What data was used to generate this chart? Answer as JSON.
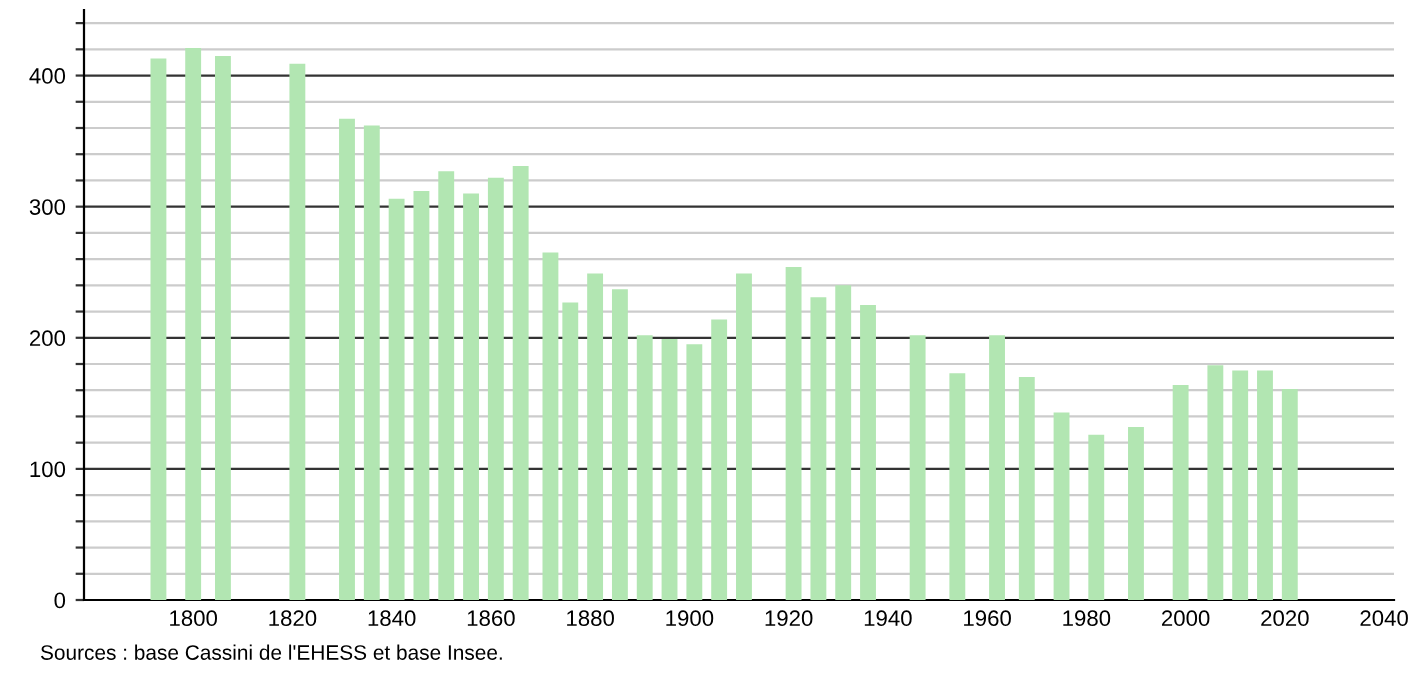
{
  "chart_data": {
    "type": "bar",
    "x": [
      1793,
      1800,
      1806,
      1821,
      1831,
      1836,
      1841,
      1846,
      1851,
      1856,
      1861,
      1866,
      1872,
      1876,
      1881,
      1886,
      1891,
      1896,
      1901,
      1906,
      1911,
      1921,
      1926,
      1931,
      1936,
      1946,
      1954,
      1962,
      1968,
      1975,
      1982,
      1990,
      1999,
      2006,
      2011,
      2016,
      2021
    ],
    "values": [
      413,
      421,
      415,
      409,
      367,
      362,
      306,
      312,
      327,
      310,
      322,
      331,
      265,
      227,
      249,
      237,
      202,
      199,
      195,
      214,
      249,
      254,
      231,
      240,
      225,
      202,
      173,
      202,
      170,
      143,
      126,
      132,
      164,
      179,
      175,
      175,
      161
    ],
    "color": "#b2e6b2",
    "xlim": [
      1778,
      2042
    ],
    "xticks": [
      1800,
      1820,
      1840,
      1860,
      1880,
      1900,
      1920,
      1940,
      1960,
      1980,
      2000,
      2020,
      2040
    ],
    "ylim": [
      0,
      450
    ],
    "yticks": [
      0,
      {
        "value": 20,
        "label": null
      },
      {
        "value": 40,
        "label": null
      },
      {
        "value": 60,
        "label": null
      },
      {
        "value": 80,
        "label": null
      },
      100,
      {
        "value": 120,
        "label": null
      },
      {
        "value": 140,
        "label": null
      },
      {
        "value": 160,
        "label": null
      },
      {
        "value": 180,
        "label": null
      },
      200,
      {
        "value": 220,
        "label": null
      },
      {
        "value": 240,
        "label": null
      },
      {
        "value": 260,
        "label": null
      },
      {
        "value": 280,
        "label": null
      },
      300,
      {
        "value": 320,
        "label": null
      },
      {
        "value": 340,
        "label": null
      },
      {
        "value": 360,
        "label": null
      },
      {
        "value": 380,
        "label": null
      },
      400,
      {
        "value": 420,
        "label": null
      },
      {
        "value": 440,
        "label": null
      }
    ],
    "grid": "y",
    "annotations": [
      "Sources : base Cassini de l'EHESS et base Insee."
    ]
  }
}
